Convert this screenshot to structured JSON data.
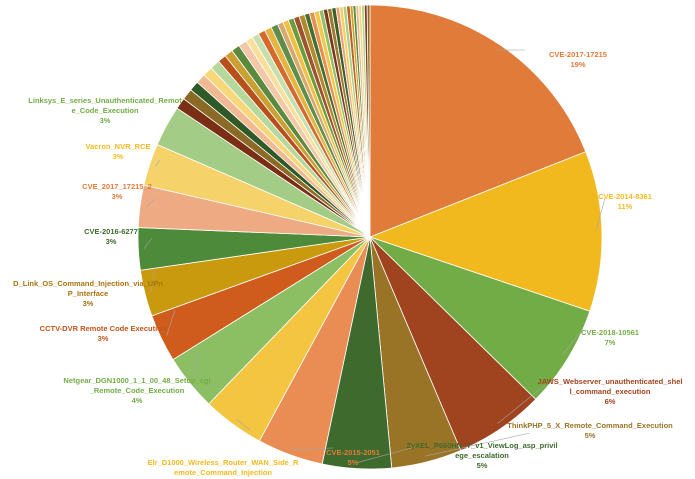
{
  "chart_data": {
    "type": "pie",
    "title": "",
    "slices": [
      {
        "label": "CVE-2017-17215",
        "value_text": "19%",
        "value": 19.4,
        "color": "#e07b39",
        "text_color": "#e07b39"
      },
      {
        "label": "CVE-2014-8361",
        "value_text": "11%",
        "value": 11.4,
        "color": "#f2b91f",
        "text_color": "#f2b91f"
      },
      {
        "label": "CVE-2018-10561",
        "value_text": "7%",
        "value": 7.3,
        "color": "#72ac47",
        "text_color": "#72ac47"
      },
      {
        "label": "JAWS_Webserver_unauthenticated_shell_command_execution",
        "label_lines": [
          "JAWS_Webserver_unauthenticated_shel",
          "l_command_execution"
        ],
        "value_text": "6%",
        "value": 6.4,
        "color": "#a0441f",
        "text_color": "#a0441f"
      },
      {
        "label": "ThinkPHP_5_X_Remote_Command_Execution",
        "value_text": "5%",
        "value": 5.0,
        "color": "#9a7426",
        "text_color": "#9a7426"
      },
      {
        "label": "ZyXEL_P660HN_T_v1_ViewLog_asp_privilege_escalation",
        "label_lines": [
          "ZyXEL_P660HN_T_v1_ViewLog_asp_privil",
          "ege_escalation"
        ],
        "value_text": "5%",
        "value": 4.9,
        "color": "#3e6a2e",
        "text_color": "#3e6a2e"
      },
      {
        "label": "CVE-2015-2051",
        "value_text": "5%",
        "value": 4.7,
        "color": "#ea8d55",
        "text_color": "#e07b39"
      },
      {
        "label": "Elr_D1000_Wireless_Router_WAN_Side_Remote_Command_Injection",
        "label_lines": [
          "Elr_D1000_Wireless_Router_WAN_Side_R",
          "emote_Command_Injection"
        ],
        "value_text": "4%",
        "value": 4.4,
        "color": "#f4c541",
        "text_color": "#f2b91f"
      },
      {
        "label": "Netgear_DGN1000_1_1_00_48_Setup_cgi_Remote_Code_Execution",
        "label_lines": [
          "Netgear_DGN1000_1_1_00_48_Setup_cgi",
          "_Remote_Code_Execution"
        ],
        "value_text": "4%",
        "value": 4.0,
        "color": "#8cbf63",
        "text_color": "#72ac47"
      },
      {
        "label": "CCTV-DVR Remote Code Execution",
        "value_text": "3%",
        "value": 3.4,
        "color": "#cf5c1d",
        "text_color": "#c0561a"
      },
      {
        "label": "D_Link_OS_Command_Injection_via_UPnP_Interface",
        "label_lines": [
          "D_Link_OS_Command_Injection_via_UPn",
          "P_Interface"
        ],
        "value_text": "3%",
        "value": 3.3,
        "color": "#c99a0e",
        "text_color": "#a8730e"
      },
      {
        "label": "CVE-2016-6277",
        "value_text": "3%",
        "value": 3.0,
        "color": "#4d8a3a",
        "text_color": "#3e6a2e"
      },
      {
        "label": "CVE_2017_17215_2",
        "value_text": "3%",
        "value": 3.0,
        "color": "#eeab83",
        "text_color": "#e07b39"
      },
      {
        "label": "Vacron_NVR_RCE",
        "value_text": "3%",
        "value": 3.0,
        "color": "#f6d26a",
        "text_color": "#f2b91f"
      },
      {
        "label": "Linksys_E_series_Unauthenticated_Remote_Code_Execution",
        "label_lines": [
          "Linksys_E_series_Unauthenticated_Remot",
          "e_Code_Execution"
        ],
        "value_text": "3%",
        "value": 2.9,
        "color": "#a3cd86",
        "text_color": "#72ac47"
      },
      {
        "label": "",
        "value": 0.8,
        "color": "#7a2e14"
      },
      {
        "label": "",
        "value": 0.8,
        "color": "#8a6a24"
      },
      {
        "label": "",
        "value": 0.7,
        "color": "#2f5a27"
      },
      {
        "label": "",
        "value": 0.7,
        "color": "#f1b894"
      },
      {
        "label": "",
        "value": 0.7,
        "color": "#f7d779"
      },
      {
        "label": "",
        "value": 0.7,
        "color": "#b7d89c"
      },
      {
        "label": "",
        "value": 0.6,
        "color": "#b8501c"
      },
      {
        "label": "",
        "value": 0.6,
        "color": "#caa033"
      },
      {
        "label": "",
        "value": 0.6,
        "color": "#5b8a3e"
      },
      {
        "label": "",
        "value": 0.6,
        "color": "#f3c8a8"
      },
      {
        "label": "",
        "value": 0.5,
        "color": "#f8df9a"
      },
      {
        "label": "",
        "value": 0.5,
        "color": "#c5e0ad"
      },
      {
        "label": "",
        "value": 0.5,
        "color": "#d46a2e"
      },
      {
        "label": "",
        "value": 0.5,
        "color": "#e4b640"
      },
      {
        "label": "",
        "value": 0.5,
        "color": "#5e8e4a"
      },
      {
        "label": "",
        "value": 0.4,
        "color": "#d8a86e"
      },
      {
        "label": "",
        "value": 0.4,
        "color": "#f0c040"
      },
      {
        "label": "",
        "value": 0.4,
        "color": "#6d9c3b"
      },
      {
        "label": "",
        "value": 0.4,
        "color": "#a0522d"
      },
      {
        "label": "",
        "value": 0.4,
        "color": "#b08a2c"
      },
      {
        "label": "",
        "value": 0.35,
        "color": "#466e2f"
      },
      {
        "label": "",
        "value": 0.35,
        "color": "#e98f50"
      },
      {
        "label": "",
        "value": 0.35,
        "color": "#f3c94a"
      },
      {
        "label": "",
        "value": 0.3,
        "color": "#8fbf6b"
      },
      {
        "label": "",
        "value": 0.3,
        "color": "#7b3a1c"
      },
      {
        "label": "",
        "value": 0.3,
        "color": "#9c7a30"
      },
      {
        "label": "",
        "value": 0.3,
        "color": "#3a5f29"
      },
      {
        "label": "",
        "value": 0.25,
        "color": "#f0a070"
      },
      {
        "label": "",
        "value": 0.25,
        "color": "#f6d060"
      },
      {
        "label": "",
        "value": 0.25,
        "color": "#a8d088"
      },
      {
        "label": "",
        "value": 0.25,
        "color": "#c06020"
      },
      {
        "label": "",
        "value": 0.2,
        "color": "#d0a020"
      },
      {
        "label": "",
        "value": 0.2,
        "color": "#558a40"
      },
      {
        "label": "",
        "value": 0.2,
        "color": "#f0b890"
      },
      {
        "label": "",
        "value": 0.2,
        "color": "#f7d880"
      },
      {
        "label": "",
        "value": 0.2,
        "color": "#b0d890"
      },
      {
        "label": "",
        "value": 0.2,
        "color": "#8a3a18"
      },
      {
        "label": "",
        "value": 0.2,
        "color": "#8c6c28"
      }
    ],
    "legend": "none",
    "data_labels": "outside with leader lines"
  }
}
